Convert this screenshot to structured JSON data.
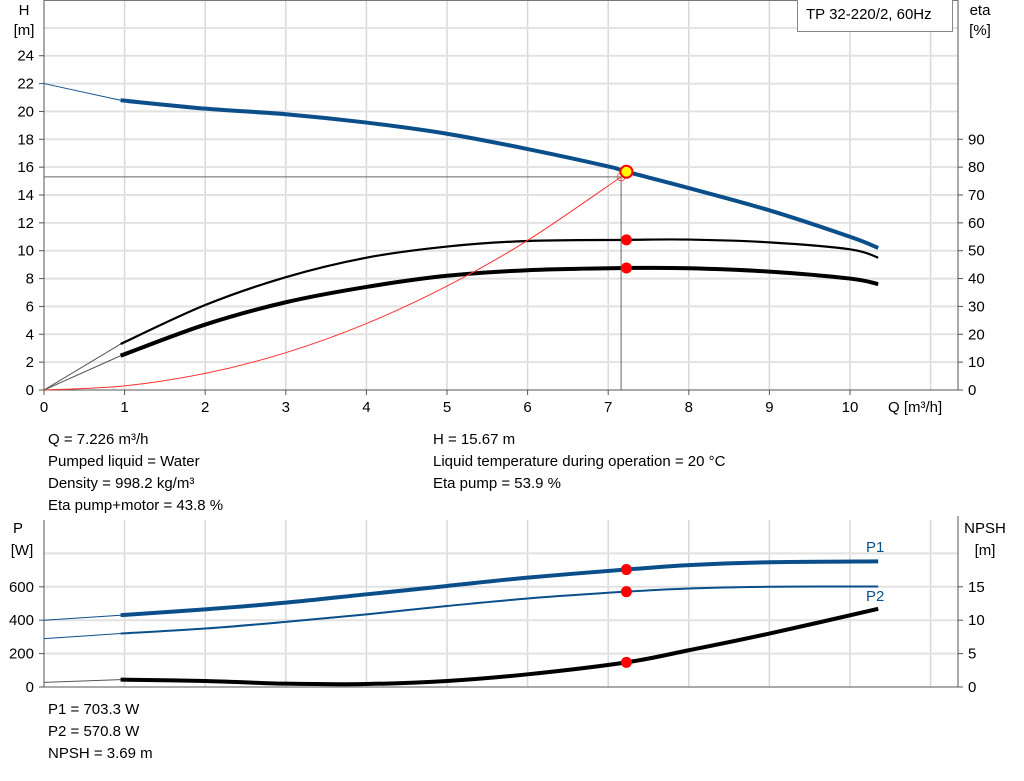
{
  "chart_data": [
    {
      "type": "line",
      "legend": "TP 32-220/2, 60Hz",
      "xlabel": "Q [m³/h]",
      "ylabel_left": [
        "H",
        "[m]"
      ],
      "ylabel_right": [
        "eta",
        "[%]"
      ],
      "xlim": [
        0,
        11.35
      ],
      "ylim_left": [
        0,
        28
      ],
      "ylim_right": [
        0,
        140
      ],
      "grid": true,
      "x_ticks": [
        0,
        1,
        2,
        3,
        4,
        5,
        6,
        7,
        8,
        9,
        10
      ],
      "y_ticks_left": [
        0,
        2,
        4,
        6,
        8,
        10,
        12,
        14,
        16,
        18,
        20,
        22,
        24
      ],
      "y_ticks_right": [
        0,
        10,
        20,
        30,
        40,
        50,
        60,
        70,
        80,
        90
      ],
      "series": [
        {
          "id": "H",
          "axis": "left",
          "color": "#0b4f8a",
          "extrapolated": [
            [
              0,
              22
            ],
            [
              0.95,
              20.8
            ]
          ],
          "points": [
            [
              0.95,
              20.8
            ],
            [
              2,
              20.2
            ],
            [
              3,
              19.8
            ],
            [
              4,
              19.2
            ],
            [
              5,
              18.4
            ],
            [
              6,
              17.3
            ],
            [
              7,
              16.05
            ],
            [
              7.226,
              15.67
            ],
            [
              8,
              14.5
            ],
            [
              9,
              12.9
            ],
            [
              10,
              11.0
            ],
            [
              10.35,
              10.2
            ]
          ]
        },
        {
          "id": "eta_pump",
          "axis": "right",
          "color": "#000000",
          "extrapolated": [
            [
              0,
              0
            ],
            [
              0.95,
              16.5
            ]
          ],
          "points": [
            [
              0.95,
              16.5
            ],
            [
              2,
              30.5
            ],
            [
              3,
              40.5
            ],
            [
              4,
              47.5
            ],
            [
              5,
              51.5
            ],
            [
              6,
              53.5
            ],
            [
              7.226,
              53.9
            ],
            [
              8,
              54
            ],
            [
              9,
              53
            ],
            [
              10,
              50.5
            ],
            [
              10.35,
              47.5
            ]
          ]
        },
        {
          "id": "eta_pump_motor",
          "axis": "right",
          "color": "#000000",
          "extrapolated": [
            [
              0,
              0
            ],
            [
              0.95,
              12.3
            ]
          ],
          "points": [
            [
              0.95,
              12.3
            ],
            [
              2,
              23.5
            ],
            [
              3,
              31.5
            ],
            [
              4,
              37
            ],
            [
              5,
              41
            ],
            [
              6,
              43
            ],
            [
              7.226,
              43.8
            ],
            [
              8,
              43.7
            ],
            [
              9,
              42.5
            ],
            [
              10,
              40
            ],
            [
              10.35,
              38
            ]
          ]
        },
        {
          "id": "system",
          "axis": "left",
          "color": "#ff3030",
          "points": [
            [
              0,
              0
            ],
            [
              1,
              0.3
            ],
            [
              2,
              1.19
            ],
            [
              3,
              2.68
            ],
            [
              4,
              4.77
            ],
            [
              5,
              7.46
            ],
            [
              6,
              10.74
            ],
            [
              7.16,
              15.3
            ]
          ]
        }
      ],
      "duty_point": {
        "Q": 7.226,
        "H": 15.67,
        "eta_pump": 53.9,
        "eta_pump_motor": 43.8
      },
      "required_point": {
        "Q": 7.16,
        "H": 15.3
      }
    },
    {
      "type": "line",
      "ylabel_left": [
        "P",
        "[W]"
      ],
      "ylabel_right": [
        "NPSH",
        "[m]"
      ],
      "xlim": [
        0,
        11.35
      ],
      "ylim_left": [
        0,
        1000
      ],
      "ylim_right": [
        0,
        25
      ],
      "grid": true,
      "y_ticks_left": [
        0,
        200,
        400,
        600
      ],
      "y_ticks_right": [
        0,
        5,
        10,
        15
      ],
      "series": [
        {
          "id": "P1",
          "name": "P1",
          "axis": "left",
          "color": "#0b4f8a",
          "extrapolated": [
            [
              0,
              400
            ],
            [
              0.95,
              430
            ]
          ],
          "points": [
            [
              0.95,
              430
            ],
            [
              2,
              465
            ],
            [
              3,
              505
            ],
            [
              4,
              555
            ],
            [
              5,
              605
            ],
            [
              6,
              655
            ],
            [
              7.226,
              703.3
            ],
            [
              8,
              730
            ],
            [
              9,
              747
            ],
            [
              10.35,
              752
            ]
          ]
        },
        {
          "id": "P2",
          "name": "P2",
          "axis": "left",
          "color": "#0b4f8a",
          "extrapolated": [
            [
              0,
              290
            ],
            [
              0.95,
              320
            ]
          ],
          "points": [
            [
              0.95,
              320
            ],
            [
              2,
              350
            ],
            [
              3,
              390
            ],
            [
              4,
              435
            ],
            [
              5,
              485
            ],
            [
              6,
              530
            ],
            [
              7.226,
              570.8
            ],
            [
              8,
              590
            ],
            [
              9,
              600
            ],
            [
              10.35,
              602
            ]
          ]
        },
        {
          "id": "NPSH",
          "axis": "right",
          "color": "#000000",
          "extrapolated": [
            [
              0,
              0.7
            ],
            [
              0.95,
              1.1
            ]
          ],
          "points": [
            [
              0.95,
              1.1
            ],
            [
              2,
              0.9
            ],
            [
              3,
              0.5
            ],
            [
              4,
              0.45
            ],
            [
              5,
              0.9
            ],
            [
              6,
              1.9
            ],
            [
              7.226,
              3.69
            ],
            [
              8,
              5.5
            ],
            [
              9,
              8.0
            ],
            [
              10.35,
              11.7
            ]
          ]
        }
      ],
      "duty_point": {
        "Q": 7.226,
        "P1": 703.3,
        "P2": 570.8,
        "NPSH": 3.69
      }
    }
  ],
  "info_top_left": [
    "Q = 7.226 m³/h",
    "Pumped liquid = Water",
    "Density = 998.2 kg/m³",
    "Eta pump+motor = 43.8 %"
  ],
  "info_top_right": [
    "H = 15.67 m",
    "Liquid temperature during operation = 20 °C",
    "Eta pump = 53.9 %"
  ],
  "info_bottom": [
    "P1 = 703.3 W",
    "P2 = 570.8 W",
    "NPSH = 3.69 m"
  ]
}
